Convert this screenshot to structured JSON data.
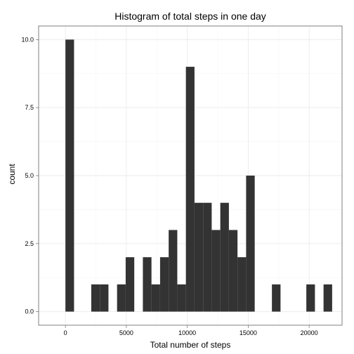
{
  "chart_data": {
    "type": "bar",
    "title": "Histogram of total steps in one day",
    "xlabel": "Total number of steps",
    "ylabel": "count",
    "bin_width": 706,
    "bins": [
      {
        "x_start": 0,
        "count": 10
      },
      {
        "x_start": 2118,
        "count": 1
      },
      {
        "x_start": 2824,
        "count": 1
      },
      {
        "x_start": 4236,
        "count": 1
      },
      {
        "x_start": 4942,
        "count": 2
      },
      {
        "x_start": 6354,
        "count": 2
      },
      {
        "x_start": 7060,
        "count": 1
      },
      {
        "x_start": 7766,
        "count": 2
      },
      {
        "x_start": 8472,
        "count": 3
      },
      {
        "x_start": 9178,
        "count": 1
      },
      {
        "x_start": 9884,
        "count": 9
      },
      {
        "x_start": 10590,
        "count": 4
      },
      {
        "x_start": 11296,
        "count": 4
      },
      {
        "x_start": 12002,
        "count": 3
      },
      {
        "x_start": 12708,
        "count": 4
      },
      {
        "x_start": 13414,
        "count": 3
      },
      {
        "x_start": 14120,
        "count": 2
      },
      {
        "x_start": 14826,
        "count": 5
      },
      {
        "x_start": 16944,
        "count": 1
      },
      {
        "x_start": 19768,
        "count": 1
      },
      {
        "x_start": 21180,
        "count": 1
      }
    ],
    "xlim": [
      -2200,
      22700
    ],
    "ylim": [
      -0.5,
      10.5
    ],
    "x_ticks": [
      0,
      5000,
      10000,
      15000,
      20000
    ],
    "x_tick_labels": [
      "0",
      "5000",
      "10000",
      "15000",
      "20000"
    ],
    "y_ticks": [
      0,
      2.5,
      5,
      7.5,
      10
    ],
    "y_tick_labels": [
      "0.0",
      "2.5",
      "5.0",
      "7.5",
      "10.0"
    ],
    "grid": true,
    "legend": "none",
    "colors": {
      "bar": "#333333",
      "grid_major": "#ebebeb",
      "grid_minor": "#f5f5f5",
      "panel_border": "#7f7f7f",
      "tick": "#7f7f7f"
    }
  }
}
